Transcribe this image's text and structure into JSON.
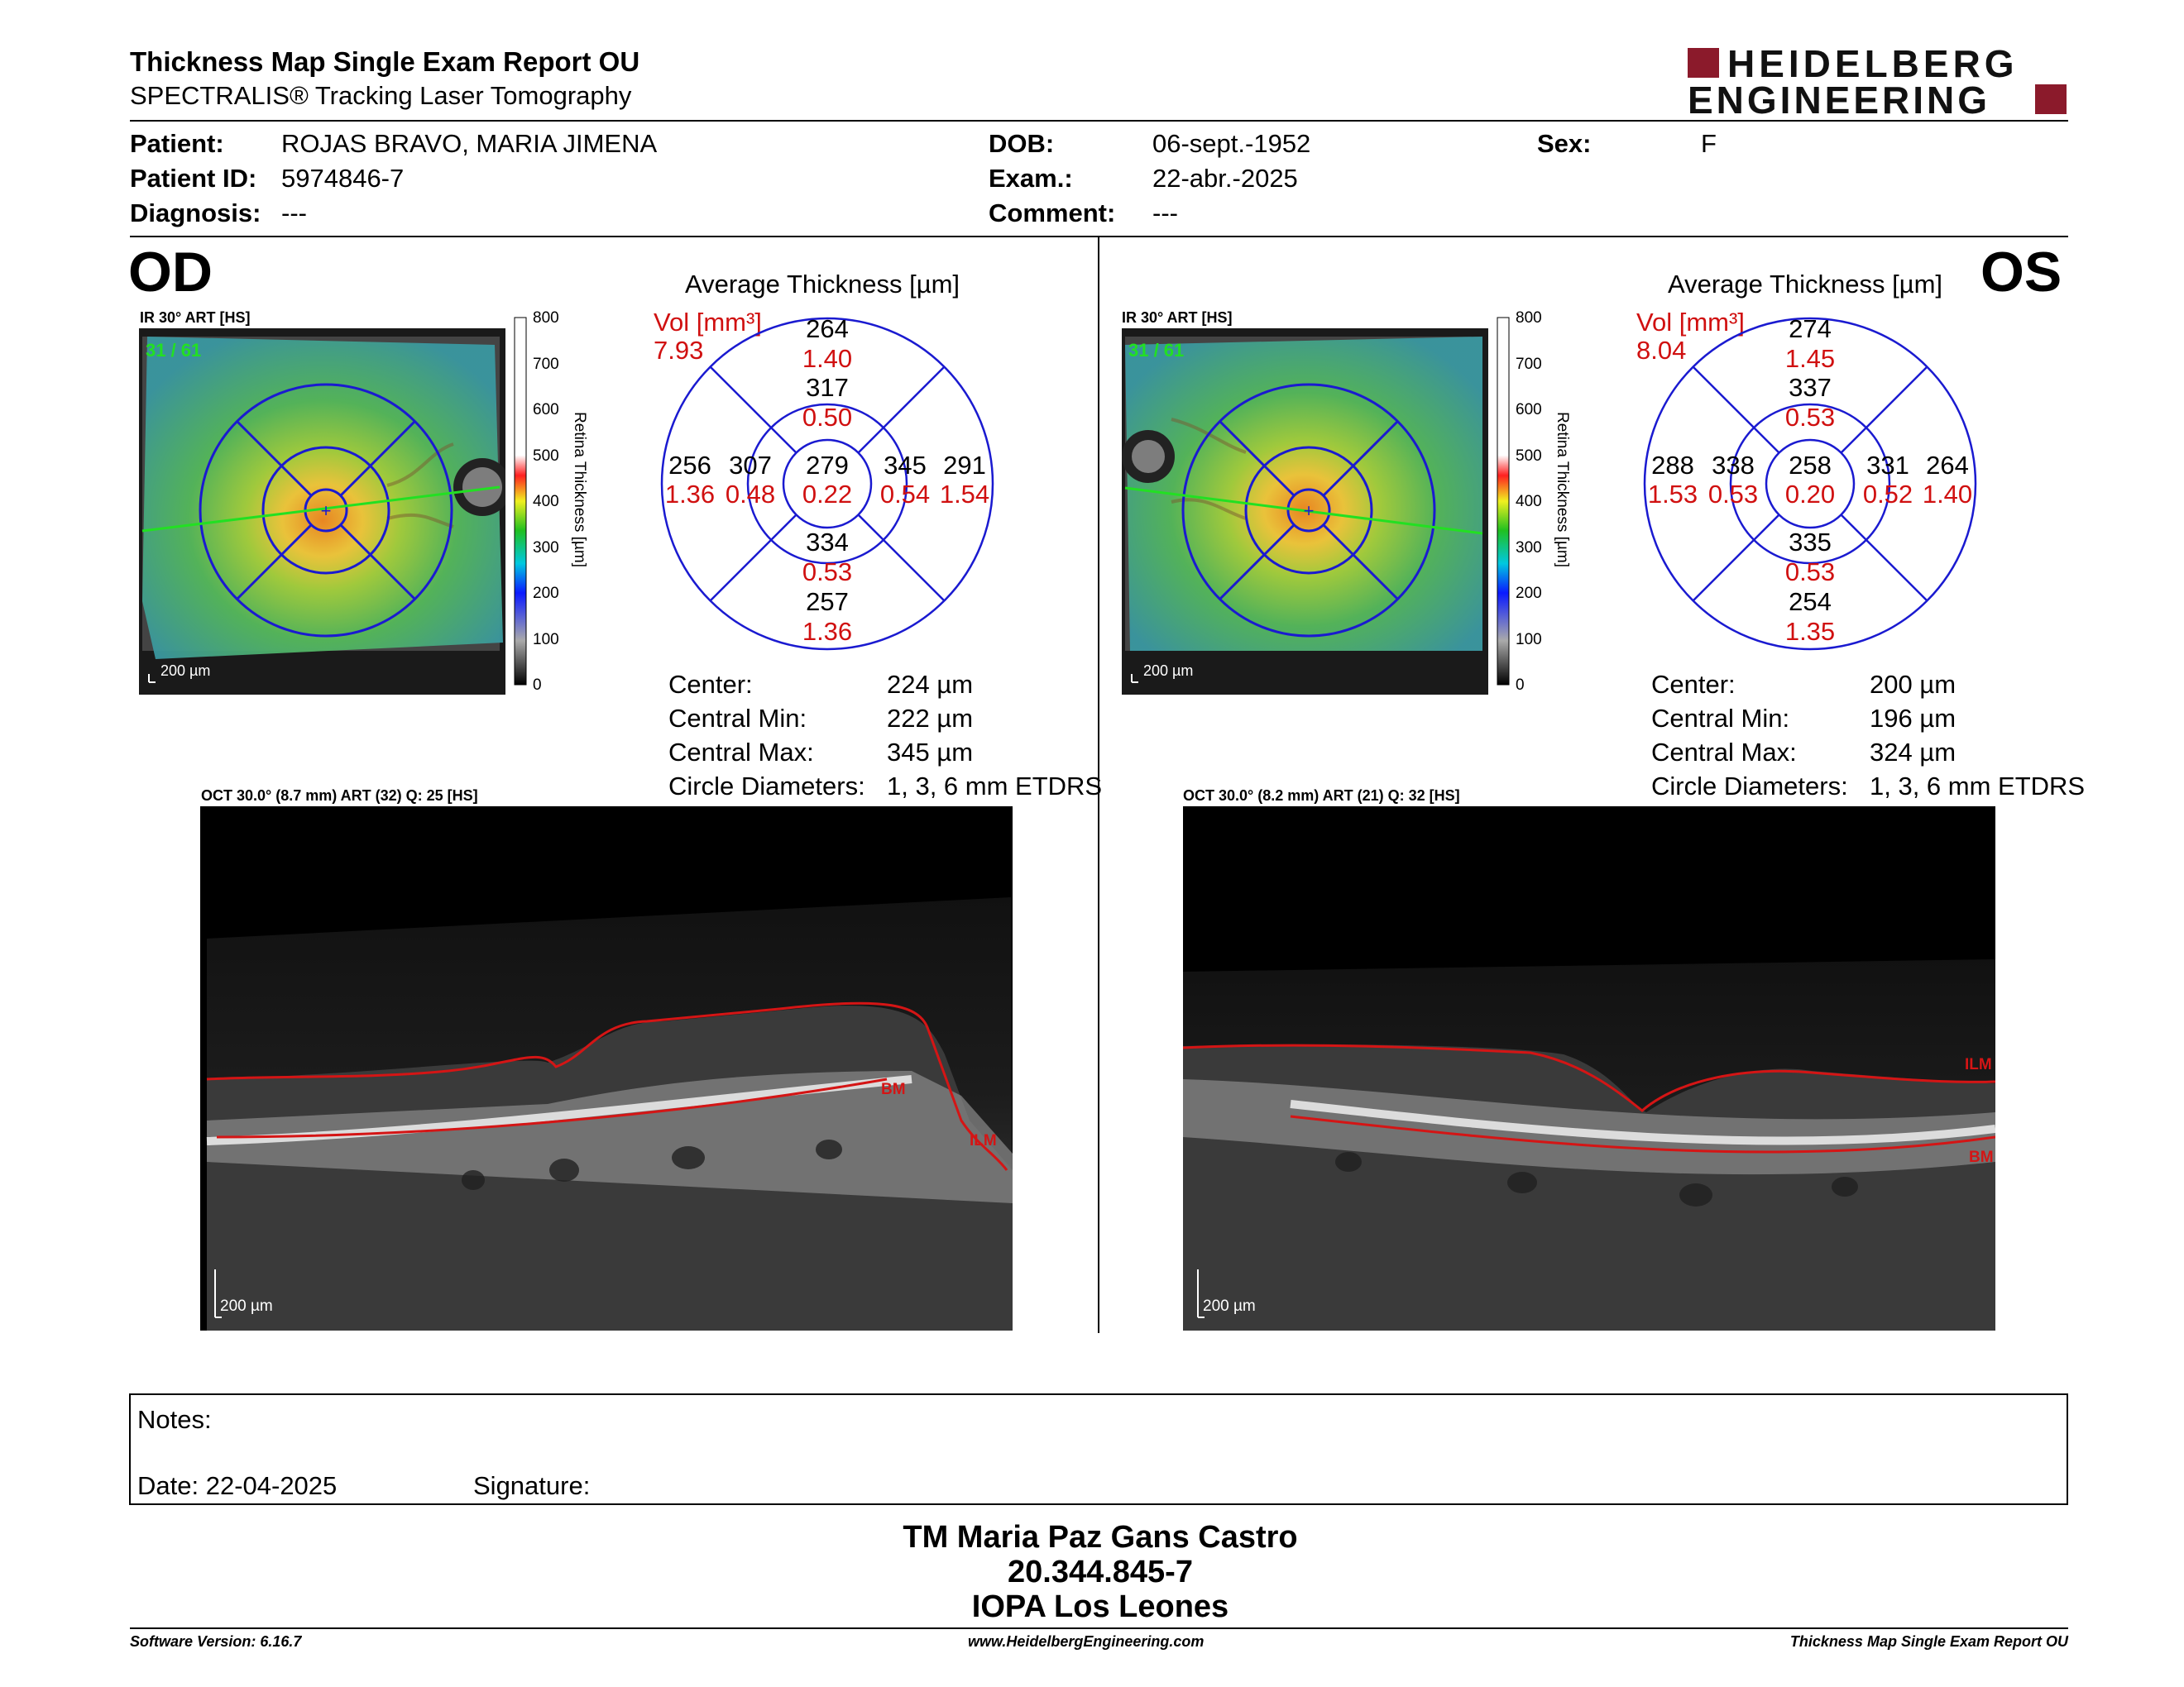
{
  "header": {
    "title": "Thickness Map Single Exam Report OU",
    "subtitle": "SPECTRALIS® Tracking Laser Tomography",
    "logo_line1": "HEIDELBERG",
    "logo_line2": "ENGINEERING",
    "brand_color": "#8b1a2b"
  },
  "patient": {
    "patient_label": "Patient:",
    "patient_value": "ROJAS BRAVO, MARIA JIMENA",
    "id_label": "Patient ID:",
    "id_value": "5974846-7",
    "diag_label": "Diagnosis:",
    "diag_value": "---",
    "dob_label": "DOB:",
    "dob_value": "06-sept.-1952",
    "exam_label": "Exam.:",
    "exam_value": "22-abr.-2025",
    "comment_label": "Comment:",
    "comment_value": "---",
    "sex_label": "Sex:",
    "sex_value": "F"
  },
  "od": {
    "eye_label": "OD",
    "ir_label": "IR 30° ART [HS]",
    "frame_count": "31 / 61",
    "scale_label": "200 µm",
    "colorbar_ticks": [
      "800",
      "700",
      "600",
      "500",
      "400",
      "300",
      "200",
      "100",
      "0"
    ],
    "colorbar_title": "Retina Thickness [µm]",
    "avg_title": "Average Thickness [µm]",
    "vol_label": "Vol [mm³]",
    "vol_value": "7.93",
    "grid": {
      "sup_outer": "264",
      "sup_outer_vol": "1.40",
      "sup_inner": "317",
      "sup_inner_vol": "0.50",
      "temp_outer": "256",
      "temp_outer_vol": "1.36",
      "temp_inner": "307",
      "temp_inner_vol": "0.48",
      "center": "279",
      "center_vol": "0.22",
      "nas_inner": "345",
      "nas_inner_vol": "0.54",
      "nas_outer": "291",
      "nas_outer_vol": "1.54",
      "inf_inner": "334",
      "inf_inner_vol": "0.53",
      "inf_outer": "257",
      "inf_outer_vol": "1.36"
    },
    "stats": {
      "center_label": "Center:",
      "center_value": "224 µm",
      "min_label": "Central Min:",
      "min_value": "222 µm",
      "max_label": "Central Max:",
      "max_value": "345 µm",
      "diam_label": "Circle Diameters:",
      "diam_value": "1, 3, 6 mm ETDRS"
    },
    "oct_label": "OCT 30.0° (8.7 mm) ART (32) Q: 25 [HS]",
    "oct_scale": "200 µm",
    "ilm_label": "ILM",
    "bm_label": "BM"
  },
  "os": {
    "eye_label": "OS",
    "ir_label": "IR 30° ART [HS]",
    "frame_count": "31 / 61",
    "scale_label": "200 µm",
    "colorbar_ticks": [
      "800",
      "700",
      "600",
      "500",
      "400",
      "300",
      "200",
      "100",
      "0"
    ],
    "colorbar_title": "Retina Thickness [µm]",
    "avg_title": "Average Thickness [µm]",
    "vol_label": "Vol [mm³]",
    "vol_value": "8.04",
    "grid": {
      "sup_outer": "274",
      "sup_outer_vol": "1.45",
      "sup_inner": "337",
      "sup_inner_vol": "0.53",
      "temp_outer": "288",
      "temp_outer_vol": "1.53",
      "temp_inner": "338",
      "temp_inner_vol": "0.53",
      "center": "258",
      "center_vol": "0.20",
      "nas_inner": "331",
      "nas_inner_vol": "0.52",
      "nas_outer": "264",
      "nas_outer_vol": "1.40",
      "inf_inner": "335",
      "inf_inner_vol": "0.53",
      "inf_outer": "254",
      "inf_outer_vol": "1.35"
    },
    "stats": {
      "center_label": "Center:",
      "center_value": "200 µm",
      "min_label": "Central Min:",
      "min_value": "196 µm",
      "max_label": "Central Max:",
      "max_value": "324 µm",
      "diam_label": "Circle Diameters:",
      "diam_value": "1, 3, 6 mm ETDRS"
    },
    "oct_label": "OCT 30.0° (8.2 mm) ART (21) Q: 32 [HS]",
    "oct_scale": "200 µm",
    "ilm_label": "ILM",
    "bm_label": "BM"
  },
  "notes": {
    "notes_label": "Notes:",
    "date_label": "Date: 22-04-2025",
    "signature_label": "Signature:"
  },
  "signatory": {
    "name": "TM Maria Paz Gans Castro",
    "rut": "20.344.845-7",
    "institution": "IOPA Los Leones"
  },
  "footer": {
    "software": "Software Version: 6.16.7",
    "website": "www.HeidelbergEngineering.com",
    "report": "Thickness Map Single Exam Report OU"
  }
}
